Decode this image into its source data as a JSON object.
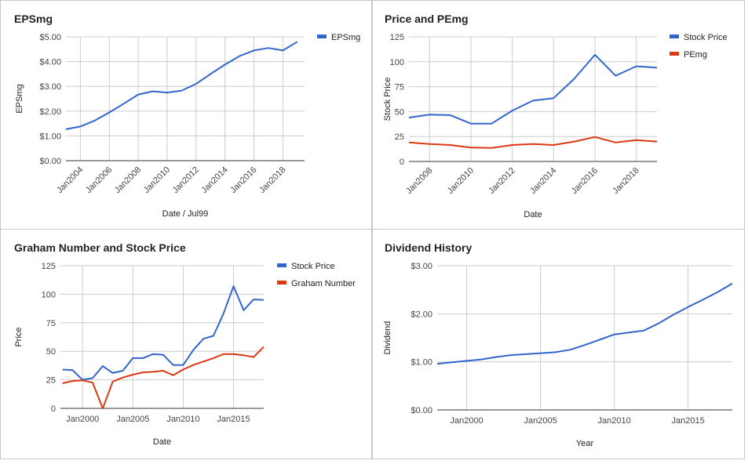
{
  "chart_data": [
    {
      "type": "line",
      "title": "EPSmg",
      "xlabel": "Date / Jul99",
      "ylabel": "EPSmg",
      "x_tick_labels": [
        "Jan2004",
        "Jan2006",
        "Jan2008",
        "Jan2010",
        "Jan2012",
        "Jan2014",
        "Jan2016",
        "Jan2018"
      ],
      "y_tick_labels": [
        "$0.00",
        "$1.00",
        "$2.00",
        "$3.00",
        "$4.00",
        "$5.00"
      ],
      "ylim": [
        0,
        5
      ],
      "xlim": [
        2003.0,
        2019.5
      ],
      "x_ticks": [
        2004,
        2006,
        2008,
        2010,
        2012,
        2014,
        2016,
        2018
      ],
      "y_ticks": [
        0,
        1,
        2,
        3,
        4,
        5
      ],
      "grid": true,
      "legend_position": "top-right",
      "x": [
        2003.0,
        2004.0,
        2005.0,
        2006.0,
        2007.0,
        2008.0,
        2009.0,
        2010.0,
        2011.0,
        2012.0,
        2013.0,
        2014.0,
        2015.0,
        2016.0,
        2017.0,
        2018.0,
        2019.0
      ],
      "series": [
        {
          "name": "EPSmg",
          "color": "#3366cc",
          "values": [
            1.27,
            1.38,
            1.62,
            1.95,
            2.3,
            2.67,
            2.8,
            2.75,
            2.83,
            3.1,
            3.5,
            3.88,
            4.22,
            4.45,
            4.55,
            4.45,
            4.8
          ]
        }
      ]
    },
    {
      "type": "line",
      "title": "Price and PEmg",
      "xlabel": "Date",
      "ylabel": "Stock Price",
      "x_tick_labels": [
        "Jan2008",
        "Jan2010",
        "Jan2012",
        "Jan2014",
        "Jan2016",
        "Jan2018"
      ],
      "y_tick_labels": [
        "0",
        "25",
        "50",
        "75",
        "100",
        "125"
      ],
      "ylim": [
        0,
        125
      ],
      "xlim": [
        2007.0,
        2019.0
      ],
      "x_ticks": [
        2008,
        2010,
        2012,
        2014,
        2016,
        2018
      ],
      "y_ticks": [
        0,
        25,
        50,
        75,
        100,
        125
      ],
      "grid": true,
      "legend_position": "top-right",
      "x": [
        2007.0,
        2008.0,
        2009.0,
        2010.0,
        2011.0,
        2012.0,
        2013.0,
        2014.0,
        2015.0,
        2016.0,
        2017.0,
        2018.0,
        2019.0
      ],
      "series": [
        {
          "name": "Stock Price",
          "color": "#3366cc",
          "values": [
            44,
            47,
            46.5,
            38,
            38,
            51,
            61,
            63.5,
            83,
            107,
            86,
            95.5,
            94
          ]
        },
        {
          "name": "PEmg",
          "color": "#dc3912",
          "values": [
            19,
            17.5,
            16.5,
            14,
            13.5,
            16.5,
            17.5,
            16.5,
            20,
            24.5,
            19,
            21.5,
            20
          ]
        }
      ]
    },
    {
      "type": "line",
      "title": "Graham Number and Stock Price",
      "xlabel": "Date",
      "ylabel": "Price",
      "x_tick_labels": [
        "Jan2000",
        "Jan2005",
        "Jan2010",
        "Jan2015"
      ],
      "y_tick_labels": [
        "0",
        "25",
        "50",
        "75",
        "100",
        "125"
      ],
      "ylim": [
        0,
        125
      ],
      "xlim": [
        1997.8,
        2018.0
      ],
      "x_ticks": [
        2000,
        2005,
        2010,
        2015
      ],
      "y_ticks": [
        0,
        25,
        50,
        75,
        100,
        125
      ],
      "grid": true,
      "legend_position": "top-right",
      "x": [
        1998.0,
        1999.0,
        2000.0,
        2001.0,
        2002.0,
        2003.0,
        2004.0,
        2005.0,
        2006.0,
        2007.0,
        2008.0,
        2009.0,
        2010.0,
        2011.0,
        2012.0,
        2013.0,
        2014.0,
        2015.0,
        2016.0,
        2017.0,
        2018.0
      ],
      "series": [
        {
          "name": "Stock Price",
          "color": "#3366cc",
          "values": [
            34,
            33.5,
            25,
            26.5,
            37,
            31,
            33,
            44,
            44,
            47.5,
            47,
            38,
            38,
            51,
            61,
            63.5,
            83,
            107,
            86,
            95.5,
            95
          ]
        },
        {
          "name": "Graham Number",
          "color": "#dc3912",
          "values": [
            22,
            24,
            24.5,
            22.5,
            0,
            23.5,
            27,
            29.5,
            31.5,
            32,
            33,
            29,
            34,
            38,
            41,
            44,
            47.5,
            47.5,
            46.5,
            45,
            54
          ]
        }
      ]
    },
    {
      "type": "line",
      "title": "Dividend History",
      "xlabel": "Year",
      "ylabel": "Dividend",
      "x_tick_labels": [
        "Jan2000",
        "Jan2005",
        "Jan2010",
        "Jan2015"
      ],
      "y_tick_labels": [
        "$0.00",
        "$1.00",
        "$2.00",
        "$3.00"
      ],
      "ylim": [
        0,
        3
      ],
      "xlim": [
        1998.0,
        2018.0
      ],
      "x_ticks": [
        2000,
        2005,
        2010,
        2015
      ],
      "y_ticks": [
        0,
        1,
        2,
        3
      ],
      "grid": true,
      "legend_position": "none",
      "x": [
        1998.0,
        1999.0,
        2000.0,
        2001.0,
        2002.0,
        2003.0,
        2004.0,
        2005.0,
        2006.0,
        2007.0,
        2008.0,
        2009.0,
        2010.0,
        2011.0,
        2012.0,
        2013.0,
        2014.0,
        2015.0,
        2016.0,
        2017.0,
        2018.0
      ],
      "series": [
        {
          "name": "",
          "color": "#3366cc",
          "values": [
            0.96,
            0.99,
            1.02,
            1.05,
            1.1,
            1.14,
            1.16,
            1.18,
            1.2,
            1.25,
            1.35,
            1.46,
            1.57,
            1.61,
            1.65,
            1.8,
            1.98,
            2.14,
            2.29,
            2.45,
            2.63
          ]
        }
      ]
    }
  ]
}
